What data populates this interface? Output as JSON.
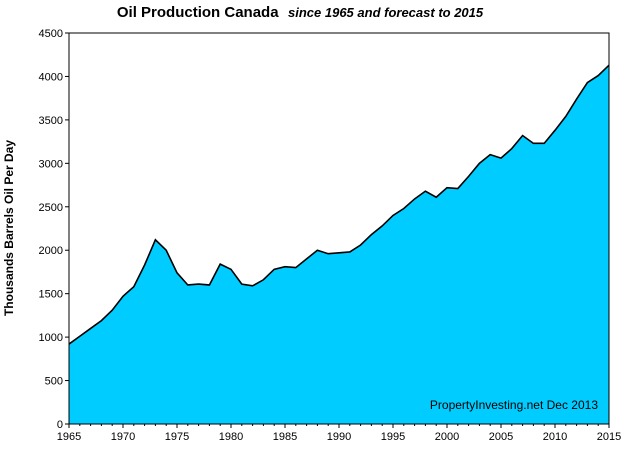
{
  "chart_data": {
    "type": "area",
    "title": "Oil Production Canada",
    "subtitle": "since 1965 and forecast  to 2015",
    "xlabel": "",
    "ylabel": "Thousands Barrels Oil Per Day",
    "xlim": [
      1965,
      2015
    ],
    "ylim": [
      0,
      4500
    ],
    "x_ticks": [
      1965,
      1970,
      1975,
      1980,
      1985,
      1990,
      1995,
      2000,
      2005,
      2010,
      2015
    ],
    "y_ticks": [
      0,
      500,
      1000,
      1500,
      2000,
      2500,
      3000,
      3500,
      4000,
      4500
    ],
    "grid": false,
    "legend": "none",
    "fill_color": "#00ccff",
    "line_color": "#000000",
    "annotation": "PropertyInvesting.net  Dec 2013",
    "x": [
      1965,
      1966,
      1967,
      1968,
      1969,
      1970,
      1971,
      1972,
      1973,
      1974,
      1975,
      1976,
      1977,
      1978,
      1979,
      1980,
      1981,
      1982,
      1983,
      1984,
      1985,
      1986,
      1987,
      1988,
      1989,
      1990,
      1991,
      1992,
      1993,
      1994,
      1995,
      1996,
      1997,
      1998,
      1999,
      2000,
      2001,
      2002,
      2003,
      2004,
      2005,
      2006,
      2007,
      2008,
      2009,
      2010,
      2011,
      2012,
      2013,
      2014,
      2015
    ],
    "y": [
      920,
      1010,
      1100,
      1190,
      1310,
      1470,
      1580,
      1830,
      2120,
      2000,
      1740,
      1600,
      1610,
      1600,
      1840,
      1780,
      1610,
      1590,
      1660,
      1780,
      1810,
      1800,
      1900,
      2000,
      1960,
      1970,
      1980,
      2060,
      2180,
      2280,
      2400,
      2480,
      2590,
      2680,
      2610,
      2720,
      2710,
      2850,
      3000,
      3100,
      3060,
      3170,
      3320,
      3230,
      3230,
      3380,
      3540,
      3740,
      3930,
      4010,
      4130
    ]
  }
}
